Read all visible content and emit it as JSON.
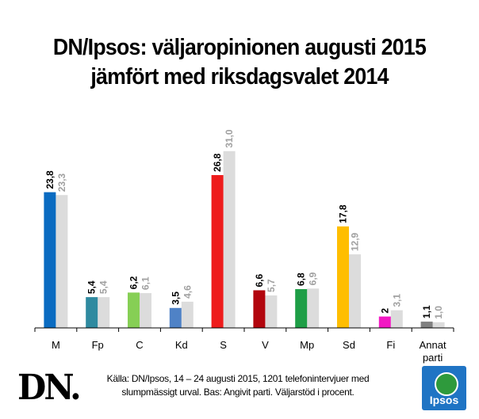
{
  "title_lines": [
    "DN/Ipsos: väljaropinionen augusti 2015",
    "jämfört med riksdagsvalet 2014"
  ],
  "source_lines": [
    "Källa: DN/Ipsos, 14 – 24 augusti 2015, 1201 telefonintervjuer med",
    "slumpmässigt urval. Bas: Angivit parti. Väljarstöd i procent."
  ],
  "logos": {
    "dn": "DN.",
    "ipsos": "Ipsos"
  },
  "chart_data": {
    "type": "bar",
    "title": "DN/Ipsos: väljaropinionen augusti 2015 jämfört med riksdagsvalet 2014",
    "categories": [
      "M",
      "Fp",
      "C",
      "Kd",
      "S",
      "V",
      "Mp",
      "Sd",
      "Fi",
      "Annat\nparti"
    ],
    "series": [
      {
        "values": [
          23.8,
          5.4,
          6.2,
          3.5,
          26.8,
          6.6,
          6.8,
          17.8,
          2,
          1.1
        ],
        "labels": [
          "23,8",
          "5,4",
          "6,2",
          "3,5",
          "26,8",
          "6,6",
          "6,8",
          "17,8",
          "2",
          "1,1"
        ],
        "colors": [
          "#0a6bc1",
          "#2f8aa0",
          "#86cf55",
          "#4f82c6",
          "#ee1c1c",
          "#b2060e",
          "#1e9e46",
          "#ffbe00",
          "#f218c3",
          "#808080"
        ]
      },
      {
        "values": [
          23.3,
          5.4,
          6.1,
          4.6,
          31.0,
          5.7,
          6.9,
          12.9,
          3.1,
          1.0
        ],
        "labels": [
          "23,3",
          "5,4",
          "6,1",
          "4,6",
          "31,0",
          "5,7",
          "6,9",
          "12,9",
          "3,1",
          "1,0"
        ],
        "colors": [
          "#dcdcdc"
        ]
      }
    ],
    "label_colors": {
      "poll": "#000000",
      "election": "#a0a0a0"
    },
    "ylim": [
      0,
      31
    ],
    "grid": false,
    "legend": "none"
  }
}
